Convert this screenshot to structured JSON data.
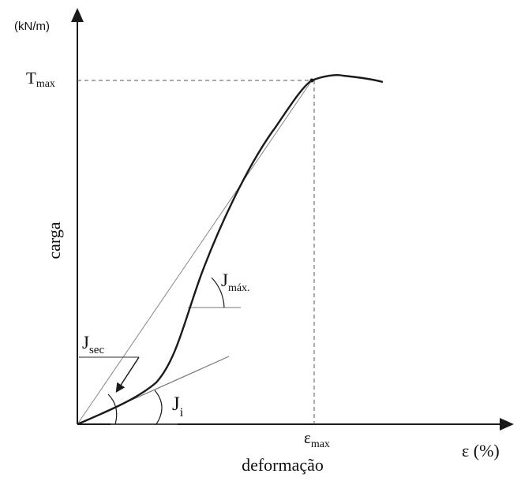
{
  "diagram": {
    "y_unit": "(kN/m)",
    "y_axis_label": "carga",
    "x_axis_label": "deformação",
    "x_axis_symbol": "ε (%)",
    "t_max": {
      "base": "T",
      "sub": "max"
    },
    "eps_max": {
      "base": "ε",
      "sub": "max"
    },
    "j_max": {
      "base": "J",
      "sub": "máx."
    },
    "j_sec": {
      "base": "J",
      "sub": "sec"
    },
    "j_i": {
      "base": "J",
      "sub": "i"
    },
    "colors": {
      "curve": "#1a1a1a",
      "axes": "#1a1a1a",
      "guides": "#555555",
      "tangent_lines": "#777777"
    }
  }
}
